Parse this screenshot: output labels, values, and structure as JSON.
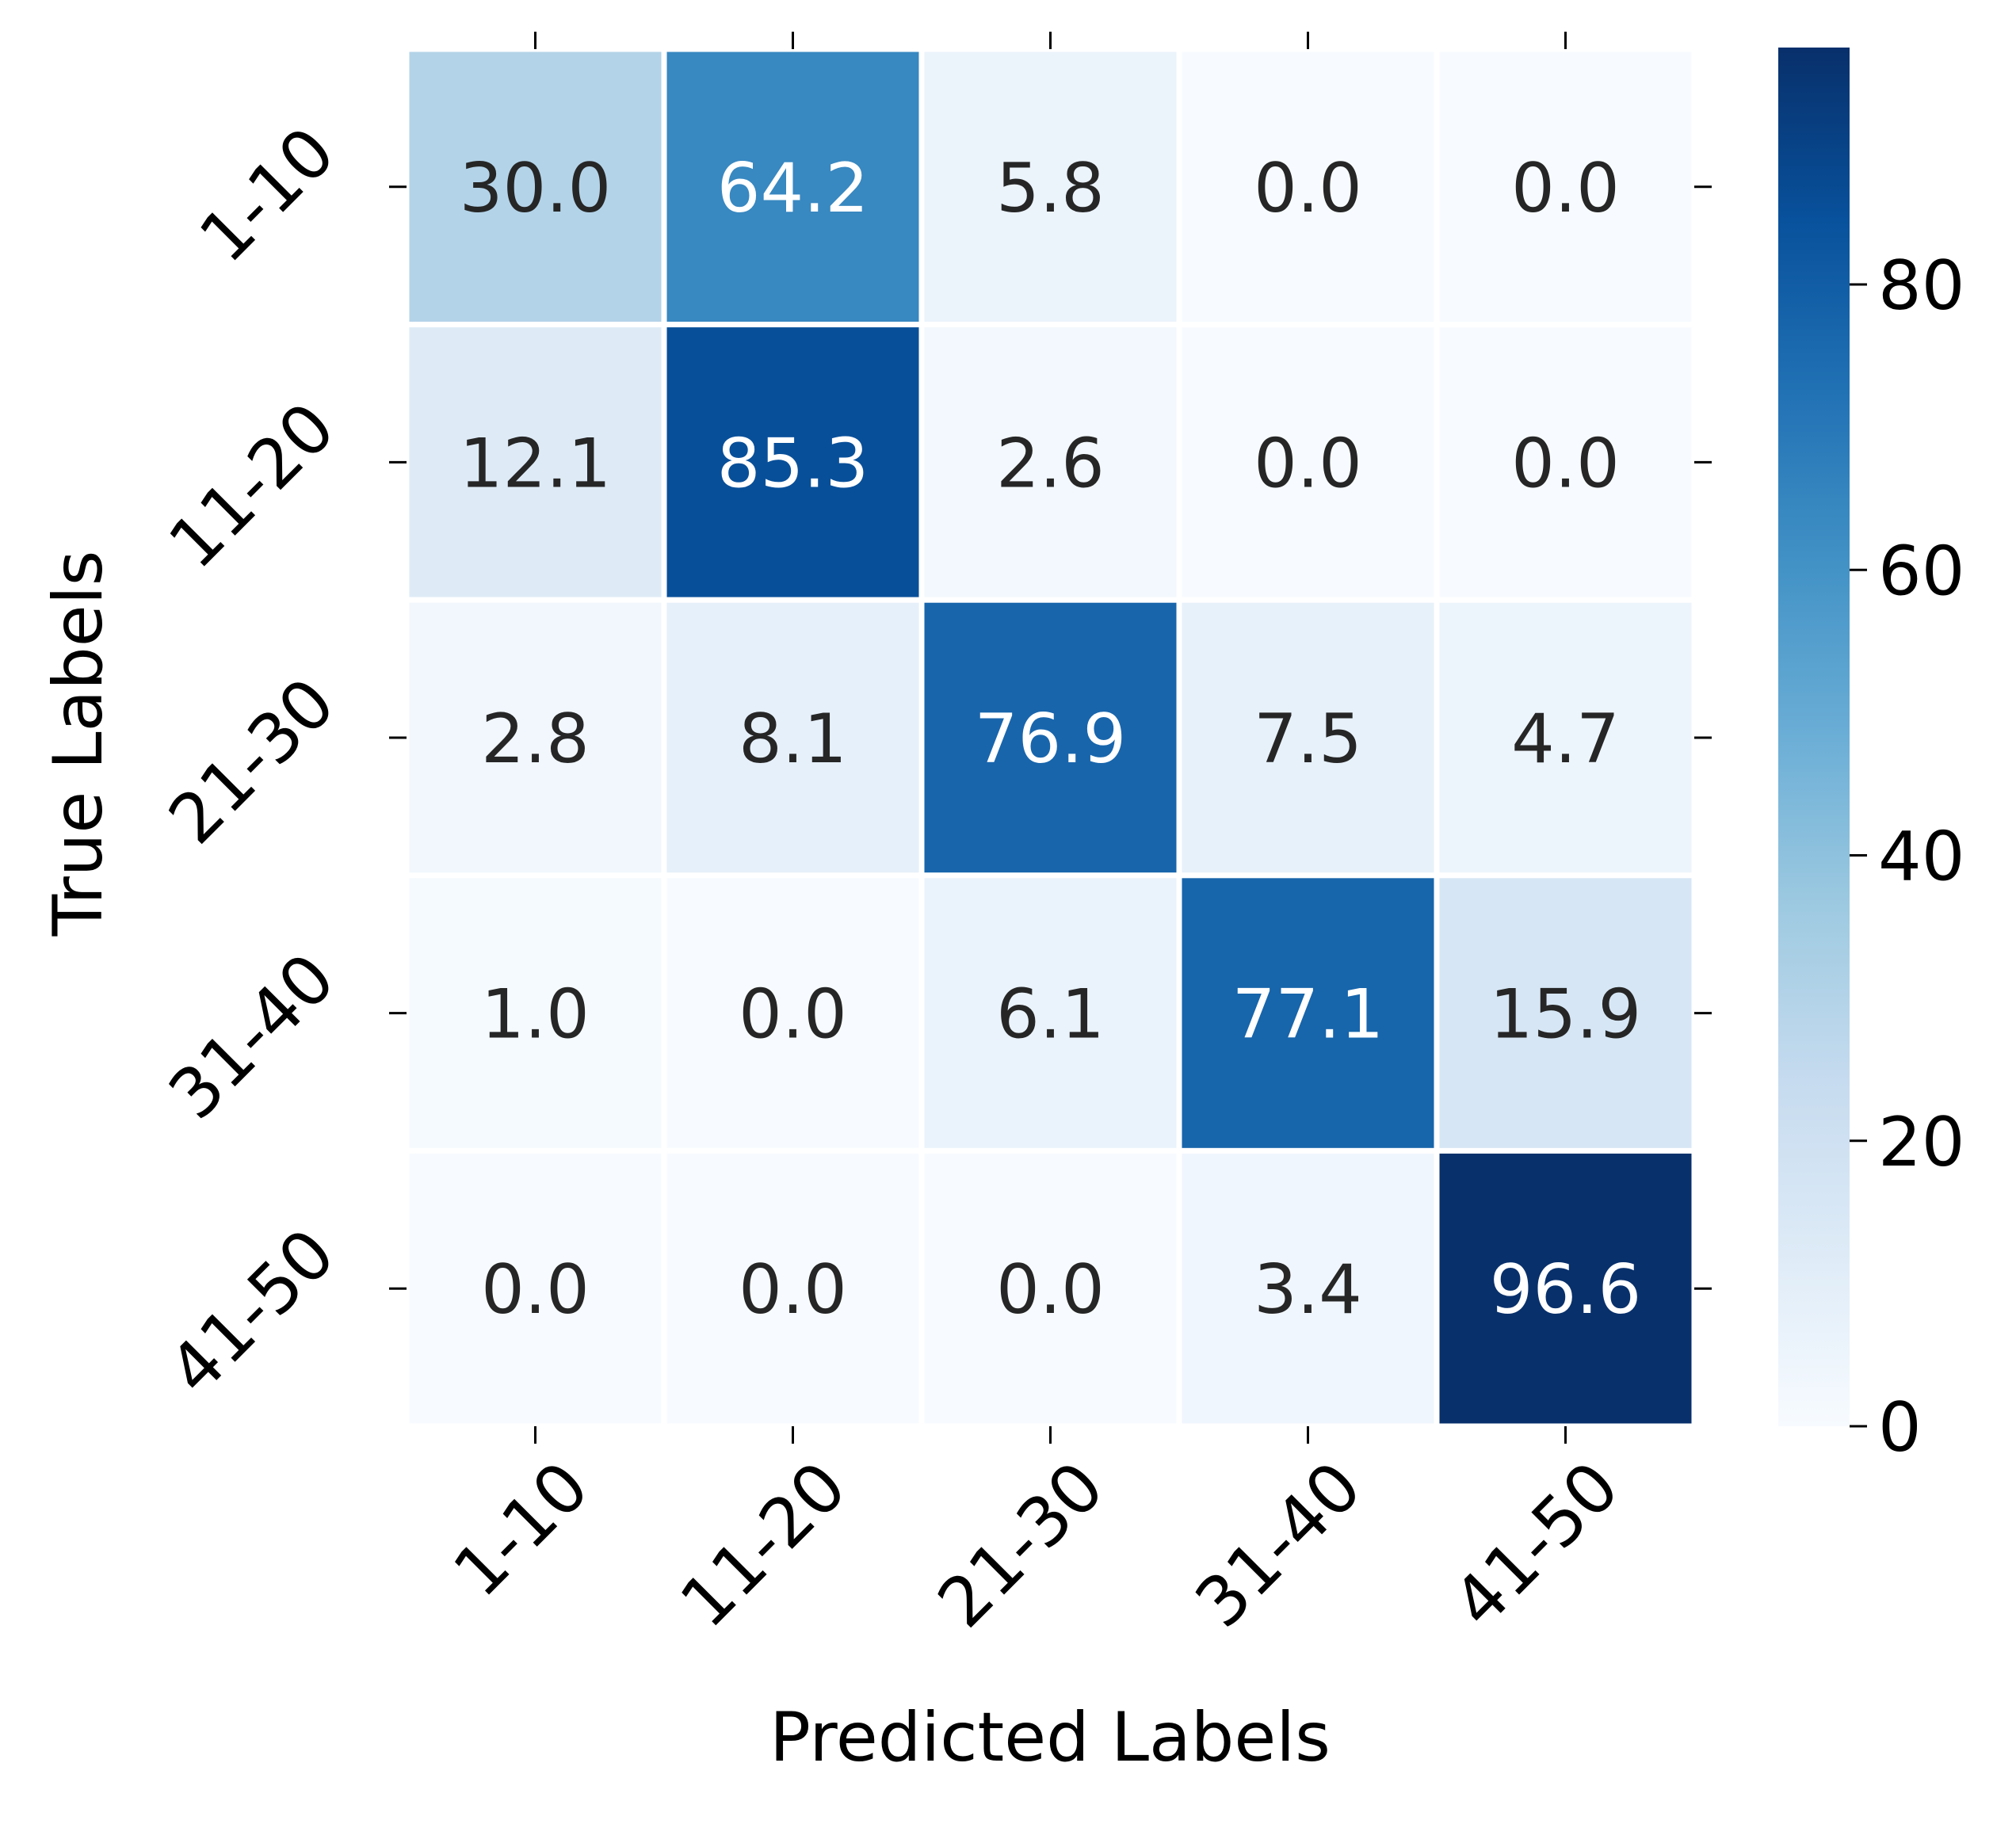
{
  "chart_data": {
    "type": "heatmap",
    "xlabel": "Predicted Labels",
    "ylabel": "True Labels",
    "x_categories": [
      "1-10",
      "11-20",
      "21-30",
      "31-40",
      "41-50"
    ],
    "y_categories": [
      "1-10",
      "11-20",
      "21-30",
      "31-40",
      "41-50"
    ],
    "values": [
      [
        30.0,
        64.2,
        5.8,
        0.0,
        0.0
      ],
      [
        12.1,
        85.3,
        2.6,
        0.0,
        0.0
      ],
      [
        2.8,
        8.1,
        76.9,
        7.5,
        4.7
      ],
      [
        1.0,
        0.0,
        6.1,
        77.1,
        15.9
      ],
      [
        0.0,
        0.0,
        0.0,
        3.4,
        96.6
      ]
    ],
    "value_labels": [
      [
        "30.0",
        "64.2",
        "5.8",
        "0.0",
        "0.0"
      ],
      [
        "12.1",
        "85.3",
        "2.6",
        "0.0",
        "0.0"
      ],
      [
        "2.8",
        "8.1",
        "76.9",
        "7.5",
        "4.7"
      ],
      [
        "1.0",
        "0.0",
        "6.1",
        "77.1",
        "15.9"
      ],
      [
        "0.0",
        "0.0",
        "0.0",
        "3.4",
        "96.6"
      ]
    ],
    "colormap": "Blues",
    "colorbar": {
      "range": [
        0,
        96.6
      ],
      "ticks": [
        0,
        20,
        40,
        60,
        80
      ],
      "tick_labels": [
        "0",
        "20",
        "40",
        "60",
        "80"
      ]
    },
    "grid": false
  }
}
